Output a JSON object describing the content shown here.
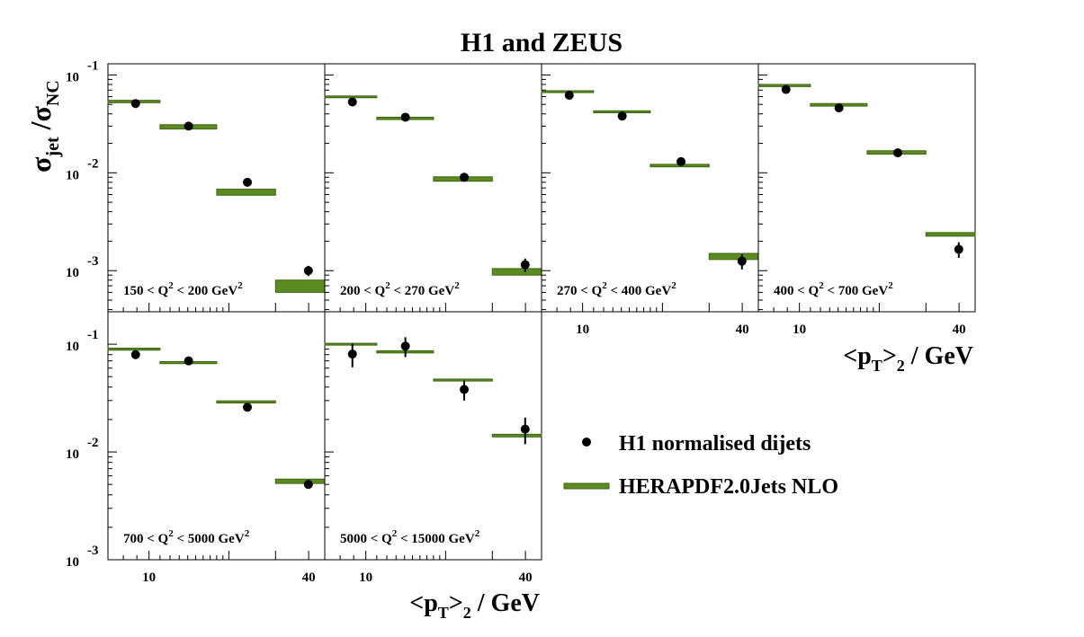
{
  "chart_data": {
    "type": "scatter",
    "title": "H1 and ZEUS",
    "ylabel": {
      "main": "σ",
      "main_sub": "jet",
      "sep": " /σ",
      "sep_sub": "NC"
    },
    "xlabel": {
      "pre": "<p",
      "sub1": "T",
      "mid": ">",
      "sub2": "2",
      "post": " / GeV"
    },
    "x_scale": "log",
    "x_range": [
      7.0,
      46.0
    ],
    "x_tick_labels": [
      "10",
      "40"
    ],
    "x_tick_values": [
      10,
      40
    ],
    "y_scale": "log",
    "y_ticks_top": [
      {
        "value": 0.1,
        "base": "10",
        "exp": "-1"
      },
      {
        "value": 0.01,
        "base": "10",
        "exp": "-2"
      },
      {
        "value": 0.001,
        "base": "10",
        "exp": "-3"
      }
    ],
    "y_ticks_bottom": [
      {
        "value": 0.1,
        "base": "10",
        "exp": "-1"
      },
      {
        "value": 0.01,
        "base": "10",
        "exp": "-2"
      },
      {
        "value": 0.001,
        "base": "10",
        "exp": "-3"
      }
    ],
    "row_ranges": [
      [
        0.00038,
        0.13
      ],
      [
        0.001,
        0.2
      ]
    ],
    "bin_edges": [
      7.0,
      11.0,
      18.0,
      30.0,
      46.0
    ],
    "series": [
      {
        "name": "H1 normalised dijets",
        "kind": "points",
        "color": "#000000"
      },
      {
        "name": "HERAPDF2.0Jets NLO",
        "kind": "bands",
        "color": "#5b8a20",
        "edge_color": "#3e6612"
      }
    ],
    "panels": [
      {
        "label": {
          "low": "150",
          "high": "200",
          "unit": "GeV"
        },
        "data_x": [
          8.9,
          14.1,
          23.5,
          39.9
        ],
        "data_y": [
          0.051,
          0.03,
          0.008,
          0.001
        ],
        "data_err": [
          0.002,
          0.0012,
          0.0004,
          0.00012
        ],
        "theory_low": [
          0.052,
          0.028,
          0.0059,
          0.0006
        ],
        "theory_high": [
          0.055,
          0.031,
          0.0068,
          0.0008
        ]
      },
      {
        "label": {
          "low": "200",
          "high": "270",
          "unit": "GeV"
        },
        "data_x": [
          8.9,
          14.1,
          23.5,
          39.9
        ],
        "data_y": [
          0.053,
          0.037,
          0.009,
          0.00115
        ],
        "data_err": [
          0.002,
          0.0012,
          0.0004,
          0.00018
        ],
        "theory_low": [
          0.059,
          0.035,
          0.0082,
          0.0009
        ],
        "theory_high": [
          0.061,
          0.037,
          0.0091,
          0.00105
        ]
      },
      {
        "label": {
          "low": "270",
          "high": "400",
          "unit": "GeV"
        },
        "data_x": [
          8.9,
          14.1,
          23.5,
          39.9
        ],
        "data_y": [
          0.062,
          0.038,
          0.013,
          0.00125
        ],
        "data_err": [
          0.002,
          0.0012,
          0.0005,
          0.00022
        ],
        "theory_low": [
          0.066,
          0.041,
          0.0115,
          0.0013
        ],
        "theory_high": [
          0.069,
          0.043,
          0.0122,
          0.0015
        ]
      },
      {
        "label": {
          "low": "400",
          "high": "700",
          "unit": "GeV"
        },
        "data_x": [
          8.9,
          14.1,
          23.5,
          39.9
        ],
        "data_y": [
          0.071,
          0.046,
          0.016,
          0.00165
        ],
        "data_err": [
          0.002,
          0.0015,
          0.0006,
          0.0003
        ],
        "theory_low": [
          0.076,
          0.048,
          0.0155,
          0.00225
        ],
        "theory_high": [
          0.08,
          0.051,
          0.0168,
          0.00245
        ]
      },
      {
        "label": {
          "low": "700",
          "high": "5000",
          "unit": "GeV"
        },
        "data_x": [
          8.9,
          14.1,
          23.5,
          39.9
        ],
        "data_y": [
          0.08,
          0.07,
          0.026,
          0.005
        ],
        "data_err": [
          0.003,
          0.003,
          0.0012,
          0.0003
        ],
        "theory_low": [
          0.088,
          0.066,
          0.0285,
          0.0051
        ],
        "theory_high": [
          0.092,
          0.069,
          0.0298,
          0.0056
        ]
      },
      {
        "label": {
          "low": "5000",
          "high": "15000",
          "unit": "GeV"
        },
        "data_x": [
          8.9,
          14.1,
          23.5,
          39.9
        ],
        "data_y": [
          0.081,
          0.096,
          0.038,
          0.0163
        ],
        "data_err": [
          0.02,
          0.02,
          0.008,
          0.0045
        ],
        "theory_low": [
          0.098,
          0.083,
          0.0455,
          0.0138
        ],
        "theory_high": [
          0.102,
          0.087,
          0.0475,
          0.0146
        ]
      }
    ],
    "legend_position": "right"
  }
}
